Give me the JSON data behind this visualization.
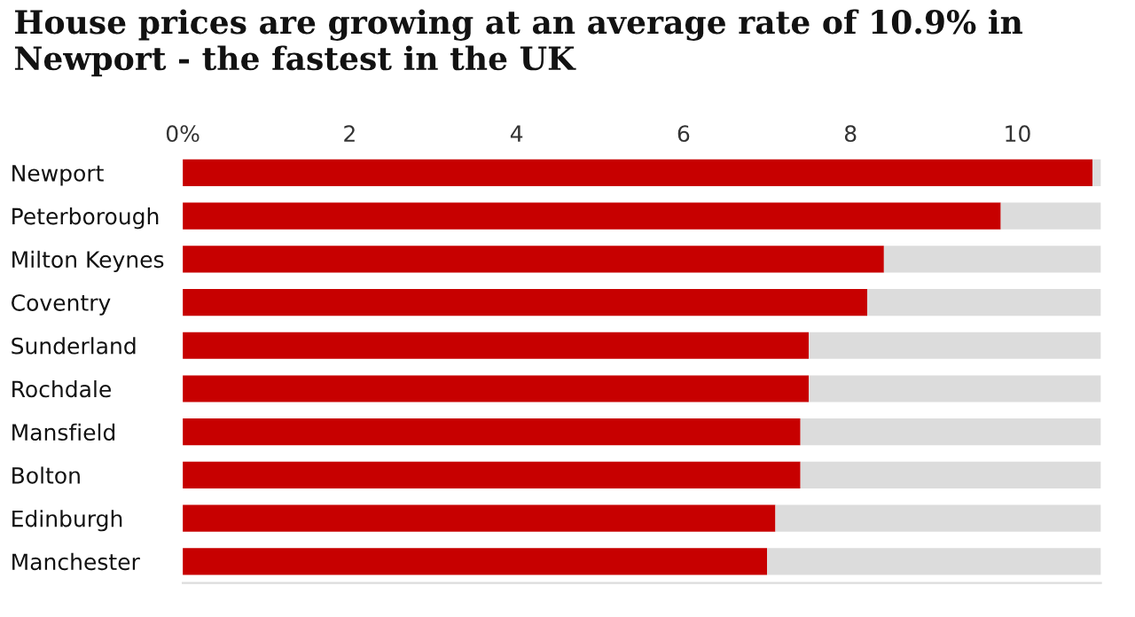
{
  "chart_data": {
    "type": "bar",
    "orientation": "horizontal",
    "title": "House prices are growing at an average rate of 10.9% in Newport - the fastest in the UK",
    "categories": [
      "Newport",
      "Peterborough",
      "Milton Keynes",
      "Coventry",
      "Sunderland",
      "Rochdale",
      "Mansfield",
      "Bolton",
      "Edinburgh",
      "Manchester"
    ],
    "stacked": true,
    "series": [
      {
        "color": "#c70000",
        "values": [
          10.9,
          9.8,
          8.4,
          8.2,
          7.5,
          7.5,
          7.4,
          7.4,
          7.1,
          7.0
        ]
      },
      {
        "color": "#dcdcdc",
        "values": [
          0.1,
          1.2,
          2.6,
          2.8,
          3.5,
          3.5,
          3.6,
          3.6,
          3.9,
          4.0
        ]
      }
    ],
    "xlim": [
      0,
      11
    ],
    "xticks": [
      {
        "value": 0,
        "label": "0%"
      },
      2,
      4,
      6,
      8,
      10
    ],
    "grid": false,
    "legend": false
  }
}
